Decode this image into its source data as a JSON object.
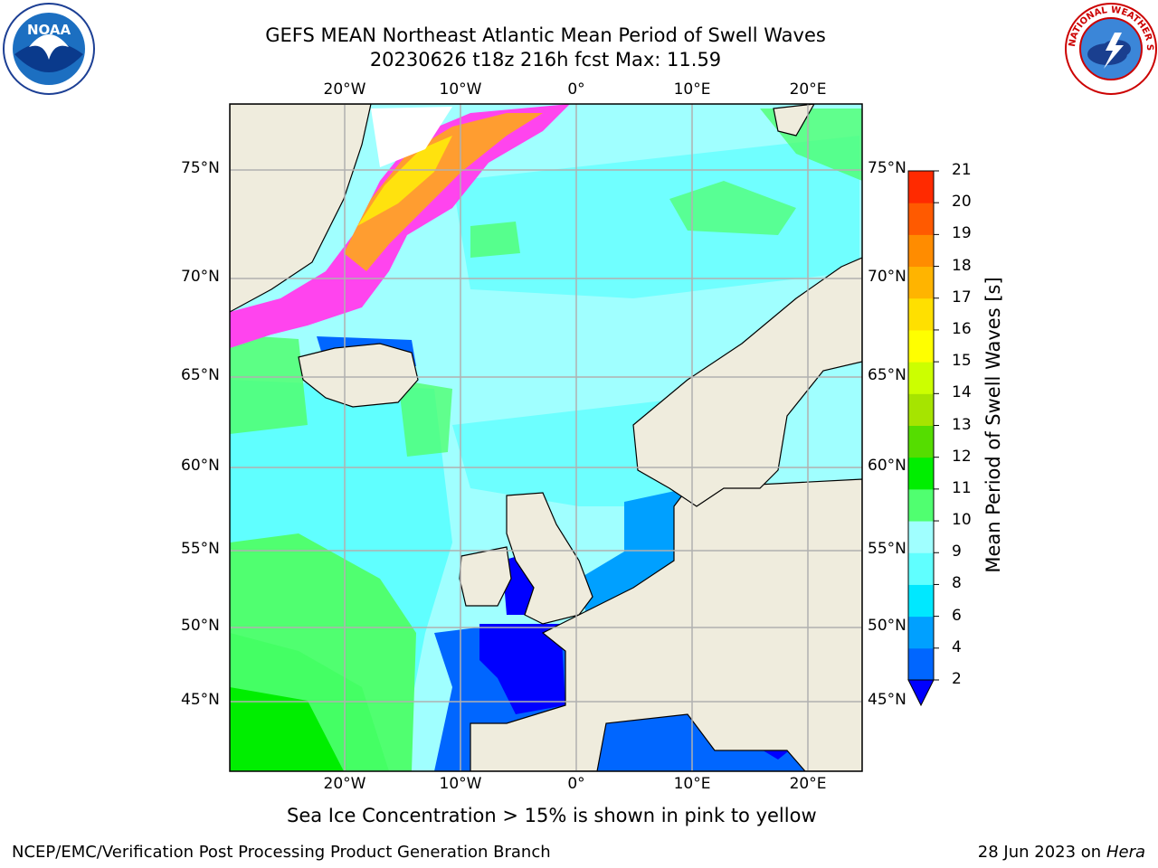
{
  "title": {
    "line1": "GEFS MEAN Northeast Atlantic Mean Period of Swell Waves",
    "line2": "20230626 t18z 216h fcst   Max: 11.59"
  },
  "logos": {
    "left_icon": "noaa-logo-icon",
    "right_icon": "nws-logo-icon",
    "noaa_text": "NOAA",
    "nws_text": "NATIONAL WEATHER SERVICE"
  },
  "map": {
    "lon_labels": [
      "20°W",
      "10°W",
      "0°",
      "10°E",
      "20°E"
    ],
    "lon_values": [
      -20,
      -10,
      0,
      10,
      20
    ],
    "lat_labels": [
      "75°N",
      "70°N",
      "65°N",
      "60°N",
      "55°N",
      "50°N",
      "45°N"
    ],
    "lat_values": [
      75,
      70,
      65,
      60,
      55,
      50,
      45
    ],
    "lon_range": [
      -30,
      25
    ],
    "lat_range": [
      41,
      78
    ],
    "land_color": "#efecdd",
    "grid_color": "#b0b0b0"
  },
  "colorbar": {
    "label": "Mean Period of Swell Waves [s]",
    "tick_labels": [
      "2",
      "4",
      "6",
      "8",
      "9",
      "10",
      "11",
      "12",
      "13",
      "14",
      "15",
      "16",
      "17",
      "18",
      "19",
      "20",
      "21"
    ],
    "colors": [
      "#0066ff",
      "#00a0ff",
      "#00e8ff",
      "#60ffff",
      "#a0ffff",
      "#50ff70",
      "#00ee00",
      "#55dd00",
      "#a6e400",
      "#ccff00",
      "#ffff00",
      "#ffe000",
      "#ffb400",
      "#ff8c00",
      "#ff5a00",
      "#ff2a00",
      "#ff0000"
    ],
    "extend_color": "#0000ff"
  },
  "ice_note": "Sea Ice Concentration > 15% is shown in pink to yellow",
  "footer": {
    "credit": "NCEP/EMC/Verification Post Processing Product Generation Branch",
    "date": "28 Jun 2023 on",
    "host": "Hera"
  }
}
